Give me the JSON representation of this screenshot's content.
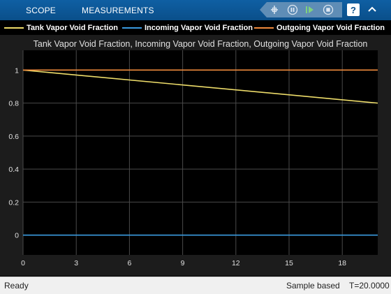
{
  "toolbar": {
    "tabs": [
      "SCOPE",
      "MEASUREMENTS"
    ],
    "controls": [
      "highlight-signal-icon",
      "pause-icon",
      "step-forward-icon",
      "stop-icon"
    ],
    "help_label": "?"
  },
  "legend": [
    {
      "name": "Tank Vapor Void Fraction",
      "color": "#eedd6a"
    },
    {
      "name": "Incoming Vapor Void Fraction",
      "color": "#3a9be0"
    },
    {
      "name": "Outgoing Vapor Void Fraction",
      "color": "#f08a3c"
    }
  ],
  "chart_data": {
    "type": "line",
    "title": "Tank Vapor Void Fraction, Incoming Vapor Void Fraction, Outgoing Vapor Void Fraction",
    "xlabel": "",
    "ylabel": "",
    "xlim": [
      0,
      20
    ],
    "ylim": [
      -0.12,
      1.12
    ],
    "xticks": [
      0,
      3,
      6,
      9,
      12,
      15,
      18
    ],
    "yticks": [
      0,
      0.2,
      0.4,
      0.6,
      0.8,
      1
    ],
    "ytick_labels": [
      "0",
      "0.2",
      "0.4",
      "0.6",
      "0.8",
      "1"
    ],
    "grid": true,
    "colors": {
      "background": "#1c1c1c",
      "axes": "#000000",
      "grid": "#4a4a4a",
      "text": "#e0e0e0"
    },
    "series": [
      {
        "name": "Tank Vapor Void Fraction",
        "color": "#eedd6a",
        "x": [
          0,
          20
        ],
        "y": [
          1,
          0.8
        ]
      },
      {
        "name": "Incoming Vapor Void Fraction",
        "color": "#3a9be0",
        "x": [
          0,
          20
        ],
        "y": [
          0,
          0
        ]
      },
      {
        "name": "Outgoing Vapor Void Fraction",
        "color": "#f08a3c",
        "x": [
          0,
          20
        ],
        "y": [
          1,
          1
        ]
      }
    ]
  },
  "status": {
    "state": "Ready",
    "mode": "Sample based",
    "time": "T=20.0000"
  }
}
